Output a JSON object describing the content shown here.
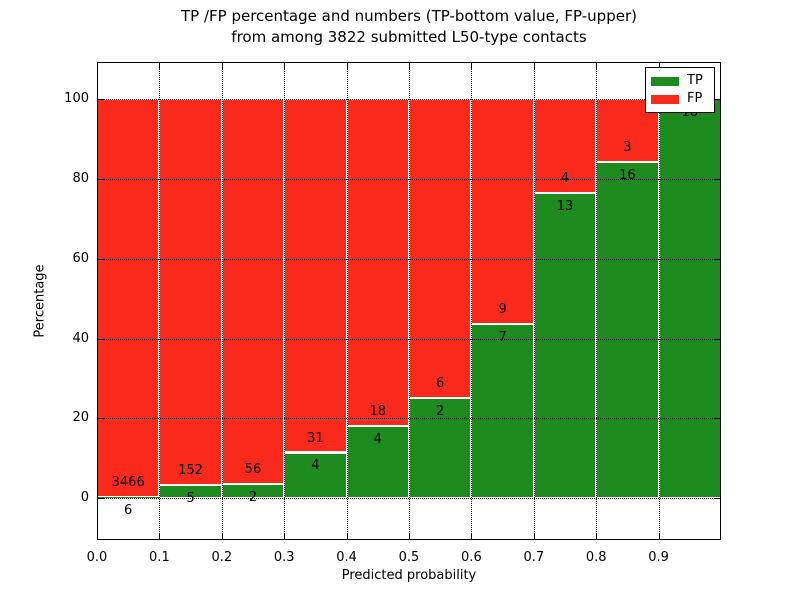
{
  "chart_data": {
    "type": "bar",
    "stacked": true,
    "title_line1": "TP /FP percentage and numbers (TP-bottom value, FP-upper)",
    "title_line2": "from among 3822 submitted L50-type contacts",
    "xlabel": "Predicted probability",
    "ylabel": "Percentage",
    "xlim": [
      0.0,
      1.0
    ],
    "ylim": [
      -10.5,
      109.3
    ],
    "grid": "dotted, on top of bars",
    "legend_position": "upper right",
    "x_ticks": [
      "0.0",
      "0.1",
      "0.2",
      "0.3",
      "0.4",
      "0.5",
      "0.6",
      "0.7",
      "0.8",
      "0.9"
    ],
    "y_ticks": [
      0,
      20,
      40,
      60,
      80,
      100
    ],
    "bins": [
      {
        "tp": 6,
        "fp": 3466,
        "tp_label": "6",
        "fp_label": "3466"
      },
      {
        "tp": 5,
        "fp": 152,
        "tp_label": "5",
        "fp_label": "152"
      },
      {
        "tp": 2,
        "fp": 56,
        "tp_label": "2",
        "fp_label": "56"
      },
      {
        "tp": 4,
        "fp": 31,
        "tp_label": "4",
        "fp_label": "31"
      },
      {
        "tp": 4,
        "fp": 18,
        "tp_label": "4",
        "fp_label": "18"
      },
      {
        "tp": 2,
        "fp": 6,
        "tp_label": "2",
        "fp_label": "6"
      },
      {
        "tp": 7,
        "fp": 9,
        "tp_label": "7",
        "fp_label": "9"
      },
      {
        "tp": 13,
        "fp": 4,
        "tp_label": "13",
        "fp_label": "4"
      },
      {
        "tp": 16,
        "fp": 3,
        "tp_label": "16",
        "fp_label": "3"
      },
      {
        "tp": 18,
        "fp": 0,
        "tp_label": "18",
        "fp_label": ""
      }
    ],
    "legend": [
      {
        "label": "TP",
        "color": "#1e8b1e"
      },
      {
        "label": "FP",
        "color": "#f9291c"
      }
    ],
    "colors": {
      "tp": "#1e8b1e",
      "fp": "#f9291c",
      "grid": "#000000",
      "axes_border": "#000000",
      "background": "#ffffff",
      "text": "#000000"
    }
  }
}
